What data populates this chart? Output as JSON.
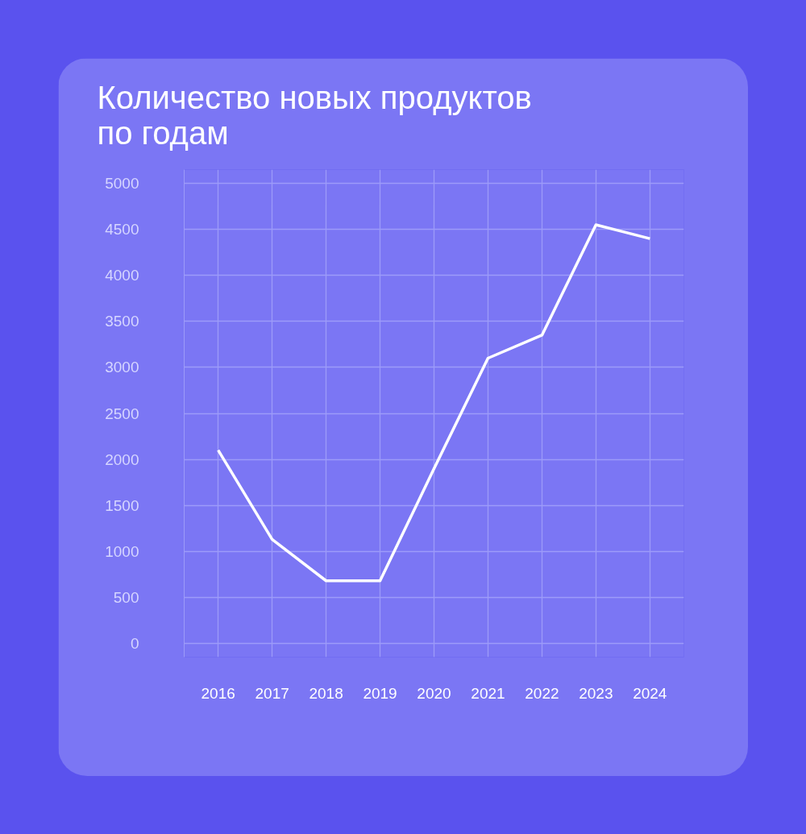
{
  "chart_data": {
    "type": "line",
    "title": "Количество новых продуктов\nпо годам",
    "categories": [
      "2016",
      "2017",
      "2018",
      "2019",
      "2020",
      "2021",
      "2022",
      "2023",
      "2024"
    ],
    "series": [
      {
        "color": "#ffffff",
        "values": [
          2100,
          1130,
          680,
          680,
          1900,
          3100,
          3350,
          4550,
          4400
        ]
      }
    ],
    "ylim": [
      -150,
      5150
    ],
    "yticks": [
      0,
      500,
      1000,
      1500,
      2000,
      2500,
      3000,
      3500,
      4000,
      4500,
      5000
    ],
    "grid": true
  }
}
